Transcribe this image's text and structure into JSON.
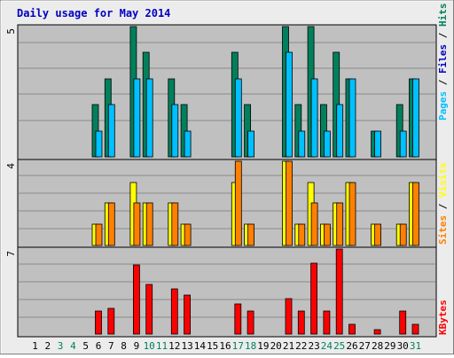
{
  "window": {
    "title": "Daily usage for May 2014"
  },
  "colors": {
    "frame_bg": "#ececec",
    "frame_border": "#7f7f7f",
    "plot_bg": "#c0c0c0",
    "grid": "#8a8a8a",
    "title_text": "#0000c0",
    "hits": "#00805c",
    "files": "#00c0ff",
    "pages": "#00c0ff",
    "visits": "#ffff00",
    "sites": "#ff8000",
    "kbytes": "#ff0000",
    "weekend_day": "#00805c",
    "weekday": "#000000"
  },
  "chart_data": [
    {
      "type": "bar",
      "panel": "hits-files-pages",
      "y_max_label": "5",
      "ylim": [
        0,
        5
      ],
      "legend": [
        {
          "text": "Pages",
          "color": "#00c0ff"
        },
        {
          "text": " / ",
          "color": "#000000"
        },
        {
          "text": "Files",
          "color": "#0000c0"
        },
        {
          "text": " / ",
          "color": "#000000"
        },
        {
          "text": "Hits",
          "color": "#00805c"
        }
      ],
      "x": [
        1,
        2,
        3,
        4,
        5,
        6,
        7,
        8,
        9,
        10,
        11,
        12,
        13,
        14,
        15,
        16,
        17,
        18,
        19,
        20,
        21,
        22,
        23,
        24,
        25,
        26,
        27,
        28,
        29,
        30,
        31
      ],
      "series": [
        {
          "key": "hits",
          "color": "#00805c",
          "values": [
            0,
            0,
            0,
            0,
            0,
            2,
            3,
            0,
            5,
            4,
            0,
            3,
            2,
            0,
            0,
            0,
            4,
            2,
            0,
            0,
            5,
            2,
            5,
            2,
            4,
            3,
            0,
            1,
            0,
            2,
            3
          ]
        },
        {
          "key": "files",
          "color": "#00c0ff",
          "values": [
            0,
            0,
            0,
            0,
            0,
            1,
            2,
            0,
            3,
            3,
            0,
            2,
            1,
            0,
            0,
            0,
            3,
            1,
            0,
            0,
            4,
            1,
            3,
            1,
            2,
            3,
            0,
            1,
            0,
            1,
            3
          ]
        }
      ]
    },
    {
      "type": "bar",
      "panel": "visits-sites",
      "y_max_label": "4",
      "ylim": [
        0,
        4
      ],
      "legend": [
        {
          "text": "Sites",
          "color": "#ff8000"
        },
        {
          "text": " / ",
          "color": "#000000"
        },
        {
          "text": "Visits",
          "color": "#ffff00"
        }
      ],
      "x": [
        1,
        2,
        3,
        4,
        5,
        6,
        7,
        8,
        9,
        10,
        11,
        12,
        13,
        14,
        15,
        16,
        17,
        18,
        19,
        20,
        21,
        22,
        23,
        24,
        25,
        26,
        27,
        28,
        29,
        30,
        31
      ],
      "series": [
        {
          "key": "visits",
          "color": "#ffff00",
          "values": [
            0,
            0,
            0,
            0,
            0,
            1,
            2,
            0,
            3,
            2,
            0,
            2,
            1,
            0,
            0,
            0,
            3,
            1,
            0,
            0,
            4,
            1,
            3,
            1,
            2,
            3,
            0,
            1,
            0,
            1,
            3
          ]
        },
        {
          "key": "sites",
          "color": "#ff8000",
          "values": [
            0,
            0,
            0,
            0,
            0,
            1,
            2,
            0,
            2,
            2,
            0,
            2,
            1,
            0,
            0,
            0,
            4,
            1,
            0,
            0,
            4,
            1,
            2,
            1,
            2,
            3,
            0,
            1,
            0,
            1,
            3
          ]
        }
      ]
    },
    {
      "type": "bar",
      "panel": "kbytes",
      "y_max_label": "7",
      "ylim": [
        0,
        7
      ],
      "legend": [
        {
          "text": "KBytes",
          "color": "#ff0000"
        }
      ],
      "x": [
        1,
        2,
        3,
        4,
        5,
        6,
        7,
        8,
        9,
        10,
        11,
        12,
        13,
        14,
        15,
        16,
        17,
        18,
        19,
        20,
        21,
        22,
        23,
        24,
        25,
        26,
        27,
        28,
        29,
        30,
        31
      ],
      "series": [
        {
          "key": "kbytes",
          "color": "#ff0000",
          "values": [
            0,
            0,
            0,
            0,
            0,
            1.9,
            2.1,
            0,
            5.7,
            4.1,
            0,
            3.7,
            3.2,
            0,
            0,
            0,
            2.5,
            1.9,
            0,
            0,
            2.9,
            1.9,
            5.8,
            1.9,
            7.0,
            0.8,
            0,
            0.4,
            0,
            1.9,
            0.8
          ]
        }
      ]
    }
  ],
  "x_axis": {
    "labels": [
      {
        "text": "1",
        "weekend": false
      },
      {
        "text": "2",
        "weekend": false
      },
      {
        "text": "3",
        "weekend": true
      },
      {
        "text": "4",
        "weekend": true
      },
      {
        "text": "5",
        "weekend": false
      },
      {
        "text": "6",
        "weekend": false
      },
      {
        "text": "7",
        "weekend": false
      },
      {
        "text": "8",
        "weekend": false
      },
      {
        "text": "9",
        "weekend": false
      },
      {
        "text": "10",
        "weekend": true
      },
      {
        "text": "11",
        "weekend": true
      },
      {
        "text": "12",
        "weekend": false
      },
      {
        "text": "13",
        "weekend": false
      },
      {
        "text": "14",
        "weekend": false
      },
      {
        "text": "15",
        "weekend": false
      },
      {
        "text": "16",
        "weekend": false
      },
      {
        "text": "17",
        "weekend": true
      },
      {
        "text": "18",
        "weekend": true
      },
      {
        "text": "19",
        "weekend": false
      },
      {
        "text": "20",
        "weekend": false
      },
      {
        "text": "21",
        "weekend": false
      },
      {
        "text": "22",
        "weekend": false
      },
      {
        "text": "23",
        "weekend": false
      },
      {
        "text": "24",
        "weekend": true
      },
      {
        "text": "25",
        "weekend": true
      },
      {
        "text": "26",
        "weekend": false
      },
      {
        "text": "27",
        "weekend": false
      },
      {
        "text": "28",
        "weekend": false
      },
      {
        "text": "29",
        "weekend": false
      },
      {
        "text": "30",
        "weekend": false
      },
      {
        "text": "31",
        "weekend": true
      }
    ]
  }
}
